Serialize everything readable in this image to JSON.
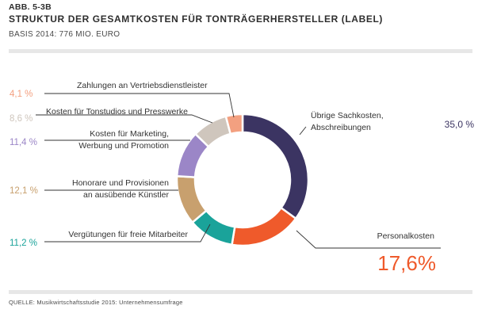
{
  "header": {
    "figure_id": "ABB. 5-3B",
    "title": "STRUKTUR DER GESAMTKOSTEN FÜR TONTRÄGERHERSTELLER (LABEL)",
    "subtitle": "BASIS 2014: 776 MIO. EURO"
  },
  "footer": {
    "source": "QUELLE: Musikwirtschaftsstudie 2015: Unternehmensumfrage"
  },
  "colors": {
    "sonstige": "#3b3462",
    "personal": "#ef5a2b",
    "verguetung": "#1aa39a",
    "honorare": "#c8a06e",
    "marketing": "#9b86c7",
    "studios": "#cfc6bd",
    "vertrieb": "#f3a080"
  },
  "chart_data": {
    "type": "pie",
    "donut": true,
    "legend": "none",
    "slices": [
      {
        "key": "sonstige",
        "label": [
          "Übrige Sachkosten,",
          "Abschreibungen"
        ],
        "value": 35.0,
        "value_text": "35,0 %"
      },
      {
        "key": "personal",
        "label": [
          "Personalkosten"
        ],
        "value": 17.6,
        "value_text": "17,6%"
      },
      {
        "key": "verguetung",
        "label": [
          "Vergütungen für freie Mitarbeiter"
        ],
        "value": 11.2,
        "value_text": "11,2 %"
      },
      {
        "key": "honorare",
        "label": [
          "Honorare und Provisionen",
          "an ausübende Künstler"
        ],
        "value": 12.1,
        "value_text": "12,1 %"
      },
      {
        "key": "marketing",
        "label": [
          "Kosten für Marketing,",
          "Werbung und Promotion"
        ],
        "value": 11.4,
        "value_text": "11,4 %"
      },
      {
        "key": "studios",
        "label": [
          "Kosten für Tonstudios und Presswerke"
        ],
        "value": 8.6,
        "value_text": "8,6 %"
      },
      {
        "key": "vertrieb",
        "label": [
          "Zahlungen an Vertriebsdienstleister"
        ],
        "value": 4.1,
        "value_text": "4,1 %"
      }
    ]
  }
}
